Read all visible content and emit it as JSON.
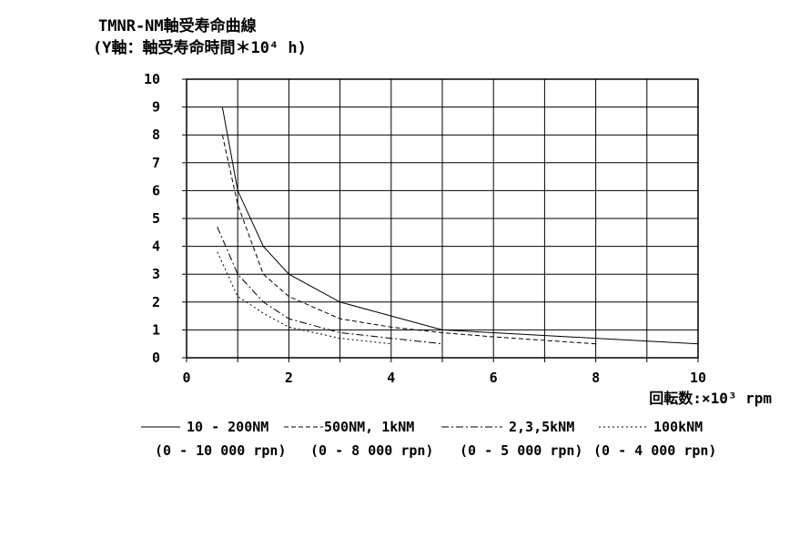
{
  "chart_data": {
    "type": "line",
    "title": "TMNR-NM軸受寿命曲線",
    "subtitle": "(Y軸：軸受寿命時間＊10⁴ h)",
    "xlabel": "回転数:×10³ rpm",
    "ylabel": "",
    "xlim": [
      0,
      10
    ],
    "ylim": [
      0,
      10
    ],
    "x_ticks": [
      "0",
      "2",
      "4",
      "6",
      "8",
      "10"
    ],
    "y_ticks": [
      "0",
      "1",
      "2",
      "3",
      "4",
      "5",
      "6",
      "7",
      "8",
      "9",
      "10"
    ],
    "grid": true,
    "legend_position": "bottom",
    "series": [
      {
        "name": "10 - 200NM",
        "range": "(0 - 10 000 rpn)",
        "dash": "solid",
        "x": [
          0.7,
          1.0,
          1.5,
          2.0,
          3.0,
          4.0,
          5.0,
          6.0,
          8.0,
          10.0
        ],
        "y": [
          9.0,
          6.0,
          4.0,
          3.0,
          2.0,
          1.5,
          1.0,
          0.9,
          0.7,
          0.5
        ]
      },
      {
        "name": "500NM, 1kNM",
        "range": "(0 - 8 000 rpn)",
        "dash": "dashed",
        "x": [
          0.7,
          1.0,
          1.5,
          2.0,
          3.0,
          4.0,
          5.0,
          6.0,
          8.0
        ],
        "y": [
          8.0,
          5.5,
          3.0,
          2.2,
          1.4,
          1.1,
          0.9,
          0.75,
          0.5
        ]
      },
      {
        "name": "2,3,5kNM",
        "range": "(0 - 5 000 rpn)",
        "dash": "dashdot",
        "x": [
          0.6,
          1.0,
          1.5,
          2.0,
          3.0,
          4.0,
          5.0
        ],
        "y": [
          4.7,
          3.0,
          2.0,
          1.4,
          0.9,
          0.7,
          0.5
        ]
      },
      {
        "name": "100kNM",
        "range": "(0 - 4 000 rpn)",
        "dash": "dotted",
        "x": [
          0.6,
          1.0,
          1.5,
          2.0,
          3.0,
          4.0
        ],
        "y": [
          3.8,
          2.2,
          1.6,
          1.1,
          0.7,
          0.5
        ]
      }
    ]
  }
}
